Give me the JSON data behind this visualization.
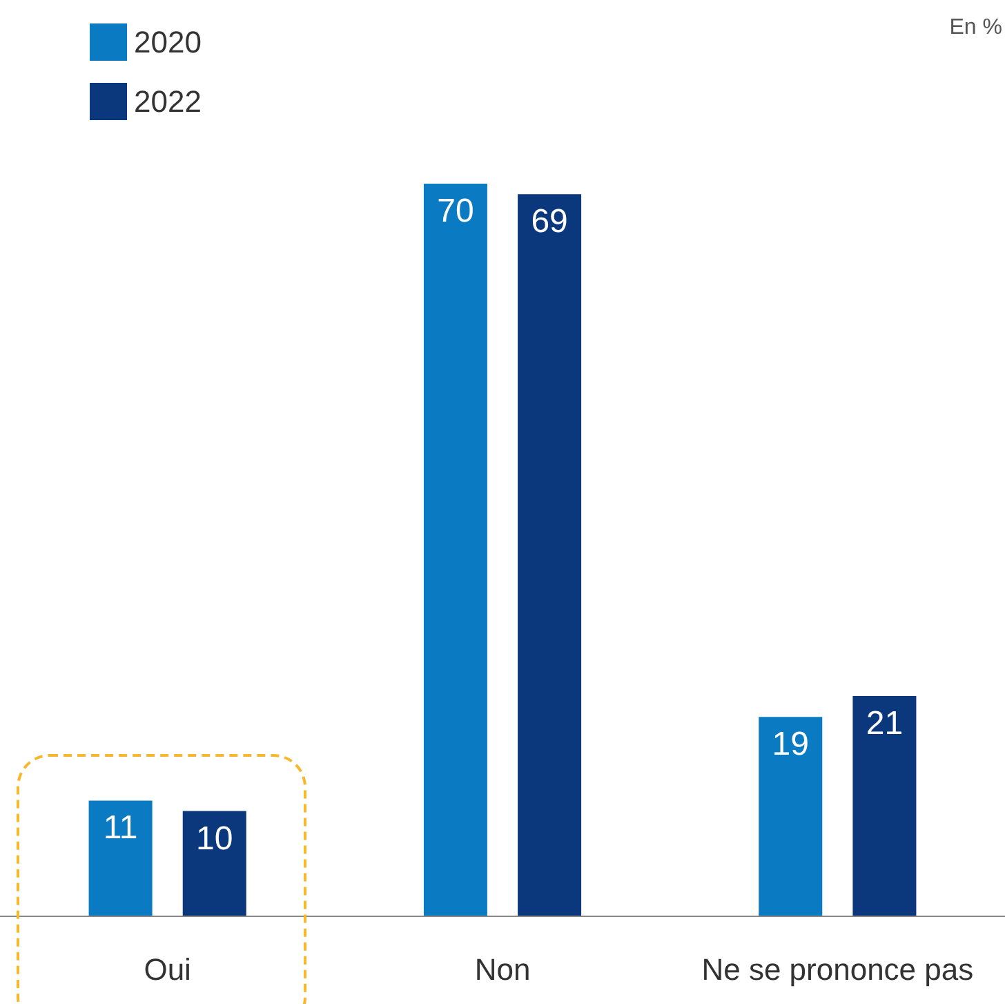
{
  "chart_data": {
    "type": "bar",
    "categories": [
      "Oui",
      "Non",
      "Ne se prononce pas"
    ],
    "series": [
      {
        "name": "2020",
        "color": "#0a7bc3",
        "values": [
          11,
          70,
          19
        ]
      },
      {
        "name": "2022",
        "color": "#0b377c",
        "values": [
          10,
          69,
          21
        ]
      }
    ],
    "data_labels": true,
    "legend": "top left",
    "grid": false,
    "annotations": [
      "En %"
    ]
  }
}
